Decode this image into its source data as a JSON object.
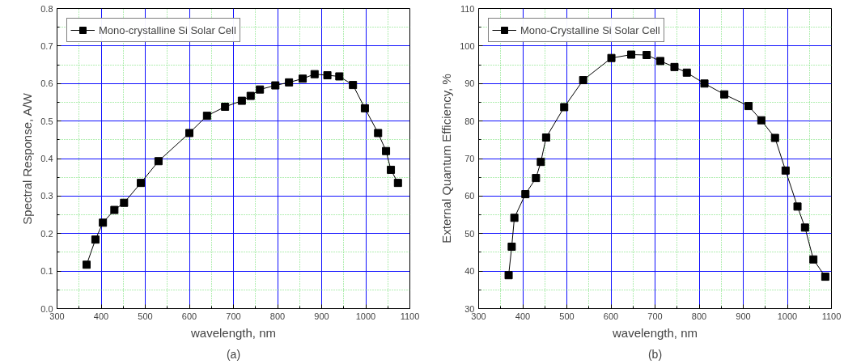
{
  "chart_data": [
    {
      "type": "line",
      "xlabel": "wavelength, nm",
      "ylabel": "Spectral Response, A/W",
      "annotations": [
        "(a)"
      ],
      "xlim": [
        300,
        1100
      ],
      "ylim": [
        0,
        0.8
      ],
      "xticks": [
        300,
        {
          "value": 350,
          "label": null
        },
        400,
        {
          "value": 450,
          "label": null
        },
        500,
        {
          "value": 550,
          "label": null
        },
        600,
        {
          "value": 650,
          "label": null
        },
        700,
        {
          "value": 750,
          "label": null
        },
        800,
        {
          "value": 850,
          "label": null
        },
        900,
        {
          "value": 950,
          "label": null
        },
        1000,
        {
          "value": 1050,
          "label": null
        },
        1100
      ],
      "yticks": [
        {
          "value": 0,
          "label": "0.0"
        },
        {
          "value": 0.05,
          "label": null
        },
        0.1,
        {
          "value": 0.15,
          "label": null
        },
        0.2,
        {
          "value": 0.25,
          "label": null
        },
        0.3,
        {
          "value": 0.35,
          "label": null
        },
        0.4,
        {
          "value": 0.45,
          "label": null
        },
        0.5,
        {
          "value": 0.55,
          "label": null
        },
        0.6,
        {
          "value": 0.65,
          "label": null
        },
        0.7,
        {
          "value": 0.75,
          "label": null
        },
        0.8
      ],
      "grid": true,
      "legend": "top left",
      "marker": "square",
      "line_style": "solid",
      "series": [
        {
          "name": "Mono-crystalline Si Solar Cell",
          "color": "#000000",
          "x": [
            367,
            387,
            404,
            430,
            452,
            490,
            530,
            600,
            640,
            681,
            719,
            739,
            760,
            795,
            826,
            857,
            884,
            913,
            940,
            971,
            998,
            1028,
            1046,
            1057,
            1073
          ],
          "values": [
            0.117,
            0.184,
            0.229,
            0.263,
            0.282,
            0.335,
            0.393,
            0.468,
            0.514,
            0.538,
            0.554,
            0.567,
            0.584,
            0.595,
            0.603,
            0.613,
            0.625,
            0.622,
            0.619,
            0.596,
            0.534,
            0.468,
            0.42,
            0.37,
            0.335
          ]
        }
      ]
    },
    {
      "type": "line",
      "xlabel": "wavelength, nm",
      "ylabel": "External Quantum Efficiency, %",
      "annotations": [
        "(b)"
      ],
      "xlim": [
        300,
        1100
      ],
      "ylim": [
        30,
        110
      ],
      "xticks": [
        300,
        {
          "value": 350,
          "label": null
        },
        400,
        {
          "value": 450,
          "label": null
        },
        500,
        {
          "value": 550,
          "label": null
        },
        600,
        {
          "value": 650,
          "label": null
        },
        700,
        {
          "value": 750,
          "label": null
        },
        800,
        {
          "value": 850,
          "label": null
        },
        900,
        {
          "value": 950,
          "label": null
        },
        1000,
        {
          "value": 1050,
          "label": null
        },
        1100
      ],
      "yticks": [
        30,
        {
          "value": 35,
          "label": null
        },
        40,
        {
          "value": 45,
          "label": null
        },
        50,
        {
          "value": 55,
          "label": null
        },
        60,
        {
          "value": 65,
          "label": null
        },
        70,
        {
          "value": 75,
          "label": null
        },
        80,
        {
          "value": 85,
          "label": null
        },
        90,
        {
          "value": 95,
          "label": null
        },
        100,
        {
          "value": 105,
          "label": null
        },
        110
      ],
      "grid": true,
      "legend": "top left",
      "marker": "square",
      "line_style": "solid",
      "series": [
        {
          "name": "Mono-Crystalline Si Solar Cell",
          "color": "#000000",
          "x": [
            368,
            375,
            381,
            406,
            430,
            441,
            453,
            494,
            537,
            601,
            646,
            681,
            712,
            744,
            772,
            812,
            857,
            912,
            941,
            972,
            996,
            1023,
            1040,
            1059,
            1086
          ],
          "values": [
            38.9,
            46.5,
            54.2,
            60.5,
            64.8,
            69.1,
            75.6,
            83.7,
            90.9,
            96.8,
            97.7,
            97.6,
            96.0,
            94.4,
            92.9,
            90.0,
            87.1,
            84.0,
            80.2,
            75.5,
            66.8,
            57.2,
            51.6,
            43.1,
            38.5
          ]
        }
      ]
    }
  ]
}
